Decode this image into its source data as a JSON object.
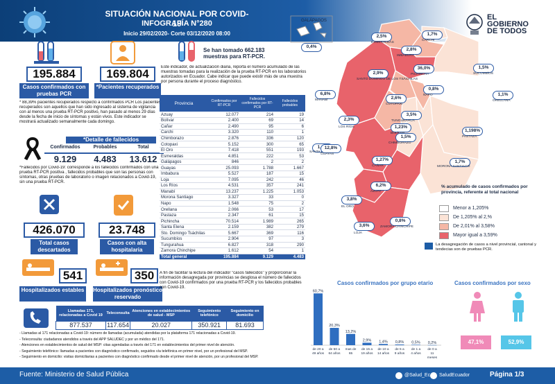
{
  "header": {
    "title": "SITUACIÓN NACIONAL POR  COVID-19",
    "subtitle": "INFOGRAFÍA N°280",
    "range": "Inicio 29/02/2020- Corte 03/12/2020 08:00",
    "logo_text": [
      "EL",
      "GOBIERNO",
      "DE TODOS"
    ]
  },
  "stats": {
    "pcr_cases": "195.884",
    "pcr_cases_label": "Casos confirmados con pruebas PCR",
    "recovered": "169.804",
    "recovered_label": "*Pacientes recuperados",
    "recovered_note": "* 88,39% pacientes recuperados respecto a confirmados PCR Los pacientes recuperados son aquellos que han sido ingresado al sistema de vigilancia con al menos una prueba RT-PCR positivo, han pasado al menos 29 días desde la fecha de inicio de síntomas y están vivos. Este indicador se mostrará actualizado semanalmente cada domingo.",
    "deaths_title": "*Detalle de fallecidos",
    "deaths_headers": [
      "Confirmados",
      "Probables",
      "Total"
    ],
    "deaths_values": [
      "9.129",
      "4.483",
      "13.612"
    ],
    "deaths_note": "*Fallecidos por Covid-19: corresponde a los fallecidos confirmados con una prueba RT-PCR positiva , fallecidos probables que son las personas con síntomas, otras pruebas de laboratorio o imagen relacionados a Covid-19, sin una prueba RT-PCR.",
    "discarded": "426.070",
    "discarded_label": "Total casos descartados",
    "high_discharge": "23.748",
    "high_discharge_label": "Casos con alta hospitalaria",
    "hospital_stable": "541",
    "hospital_stable_label": "Hospitalizados estables",
    "hospital_reserved": "350",
    "hospital_reserved_label": "Hospitalizados pronóstico reservado"
  },
  "tests": {
    "headline": "Se han tomado 662.183 muestras  para RT-PCR.",
    "description": "Este indicador, de actualización diaria, reporta el número acumulado de las muestras tomadas para la realización de la prueba RT-PCR en los laboratorios autorizados en Ecuador. Cabe indicar que puede existir más de una muestra por persona durante el proceso diagnóstico."
  },
  "province_table": {
    "headers": [
      "Provincia",
      "Confirmados por RT-PCR",
      "Fallecidos confirmados por RT-PCR",
      "Fallecidos probables"
    ],
    "rows": [
      [
        "Azuay",
        "12.077",
        "214",
        "19"
      ],
      [
        "Bolívar",
        "2.400",
        "69",
        "14"
      ],
      [
        "Cañar",
        "2.490",
        "95",
        "6"
      ],
      [
        "Carchi",
        "3.320",
        "110",
        "1"
      ],
      [
        "Chimborazo",
        "2.876",
        "336",
        "120"
      ],
      [
        "Cotopaxi",
        "5.152",
        "300",
        "65"
      ],
      [
        "El Oro",
        "7.418",
        "551",
        "193"
      ],
      [
        "Esmeraldas",
        "4.851",
        "222",
        "53"
      ],
      [
        "Galápagos",
        "846",
        "2",
        "2"
      ],
      [
        "Guayas",
        "25.093",
        "1.788",
        "1.667"
      ],
      [
        "Imbabura",
        "5.527",
        "187",
        "15"
      ],
      [
        "Loja",
        "7.095",
        "242",
        "46"
      ],
      [
        "Los Ríos",
        "4.531",
        "357",
        "241"
      ],
      [
        "Manabí",
        "13.237",
        "1.225",
        "1.053"
      ],
      [
        "Morona Santiago",
        "3.327",
        "33",
        "0"
      ],
      [
        "Napo",
        "1.548",
        "75",
        "2"
      ],
      [
        "Orellana",
        "2.066",
        "53",
        "17"
      ],
      [
        "Pastaza",
        "2.347",
        "61",
        "15"
      ],
      [
        "Pichincha",
        "70.514",
        "1.989",
        "265"
      ],
      [
        "Santa Elena",
        "2.159",
        "382",
        "279"
      ],
      [
        "Sto. Domingo Tsáchilas",
        "5.667",
        "369",
        "116"
      ],
      [
        "Sucumbíos",
        "2.904",
        "97",
        "3"
      ],
      [
        "Tungurahua",
        "6.827",
        "318",
        "290"
      ],
      [
        "Zamora Chinchipe",
        "1.612",
        "54",
        "1"
      ]
    ],
    "total": [
      "Total general",
      "195.884",
      "9.129",
      "4.483"
    ]
  },
  "deaths_disaggregation_note": "A fin de facilitar la lectura del indicador \"casos fallecidos\" y proporcionar la información desagregada por provincias se desglosa el número de fallecidos con Covid-19 confirmados por una prueba RT-PCR y los fallecidos probables con Covid-19.",
  "calls": {
    "headers": [
      "Llamadas 171, relacionadas a Covid 19",
      "Teleconsulta",
      "Atenciones en establecimientos de salud - MSP",
      "Seguimiento telefónico",
      "Seguimiento en domicilio"
    ],
    "values": [
      "877.537",
      "117.654",
      "20.027",
      "350.921",
      "81.693"
    ],
    "notes": [
      "- Llamadas al 171 relacionadas a Covid-19: número de llamadas (acumulada) atendidas por la plataforma 171 relacionadas a Covid-19.",
      "- Teleconsulta: ciudadanos atendidos a través del APP SALUDEC y por un médico del 171.",
      "- Atenciones en establecimientos de salud del MSP:  citas agendadas a través del 171 en establecimientos del primer nivel de atención.",
      "- Seguimiento telefónico: llamadas a pacientes con diagnóstico confirmado, seguidos vía telefónica en primer nivel, por un profesional del MSP.",
      "- Seguimiento en domicilio: visitas domiciliarias a pacientes con diagnóstico confirmado desde el primer nivel de atención, por un profesional del MSP."
    ]
  },
  "map": {
    "galapagos_label": "GALÁPAGOS",
    "regions": [
      {
        "name": "ESMERALDAS",
        "pct": "2,5%"
      },
      {
        "name": "CARCHI",
        "pct": "1,7%"
      },
      {
        "name": "IMBABURA",
        "pct": "2,8%"
      },
      {
        "name": "PICHINCHA",
        "pct": "36,0%"
      },
      {
        "name": "SANTO DOMINGO DE LOS TSÁCHILAS",
        "pct": "2,9%"
      },
      {
        "name": "SUCUMBÍOS",
        "pct": "1,5%"
      },
      {
        "name": "NAPO",
        "pct": "0,8%"
      },
      {
        "name": "ORELLANA",
        "pct": "1,1%"
      },
      {
        "name": "MANABÍ",
        "pct": "6,8%"
      },
      {
        "name": "COTOPAXI",
        "pct": "2,6%"
      },
      {
        "name": "TUNGURAHUA",
        "pct": "3,5%"
      },
      {
        "name": "LOS RÍOS",
        "pct": "2,3%"
      },
      {
        "name": "BOLÍVAR",
        "pct": "1,23%"
      },
      {
        "name": "CHIMBORAZO",
        "pct": "1,5%"
      },
      {
        "name": "PASTAZA",
        "pct": "1,198%"
      },
      {
        "name": "SANTA ELENA",
        "pct": "1,1%"
      },
      {
        "name": "GUAYAS",
        "pct": "12,8%"
      },
      {
        "name": "CAÑAR",
        "pct": "1,27%"
      },
      {
        "name": "MORONA SANTIAGO",
        "pct": "1,7%"
      },
      {
        "name": "AZUAY",
        "pct": "6,2%"
      },
      {
        "name": "EL ORO",
        "pct": "3,8%"
      },
      {
        "name": "LOJA",
        "pct": "3,6%"
      },
      {
        "name": "ZAMORA CHINCHIPE",
        "pct": "0,8%"
      }
    ],
    "galapagos_pct": "0,4%",
    "legend_title": "% acumulado de casos confirmados por provincia, referente al total nacional",
    "legend": [
      {
        "label": "Menor a 1,205%",
        "color": "#ffffff"
      },
      {
        "label": "De 1,205% al 2,%",
        "color": "#fbe3d6"
      },
      {
        "label": "De 2,01% al 3,58%",
        "color": "#f5b7a5"
      },
      {
        "label": "Mayor igual a 3,59%",
        "color": "#e8636b"
      }
    ],
    "note": "La desagregación de casos a nivel provincial, cantonal y tendecias son  de pruebas PCR."
  },
  "chart_data": [
    {
      "type": "bar",
      "title": "Casos confirmados por grupo etario",
      "categories": [
        "de 20 a 49 años",
        "de 50 a 64 años",
        "mas de 65",
        "de 15 a 19 años",
        "de 10 a 14 años",
        "de 5 a 9 años",
        "de 1 a 4 años",
        "de 0 a 11 meses"
      ],
      "values": [
        60.7,
        20.3,
        13.2,
        2.9,
        1.4,
        0.8,
        0.5,
        0.2
      ],
      "labels": [
        "60,7%",
        "20,3%",
        "13,2%",
        "2,9%",
        "1,4%",
        "0,8%",
        "0,5%",
        "0,2%"
      ],
      "ylim": [
        0,
        65
      ]
    },
    {
      "type": "bar",
      "title": "Casos confirmados por sexo",
      "categories": [
        "Mujeres",
        "Hombres"
      ],
      "values": [
        47.1,
        52.9
      ],
      "labels": [
        "47,1%",
        "52,9%"
      ],
      "colors": [
        "#f08ab8",
        "#56c6e8"
      ]
    }
  ],
  "footer": {
    "source": "Fuente: Ministerio de Salud Pública",
    "social1": "@Salud_Ec",
    "social2": "SaludEcuador",
    "page": "Página 1/3"
  }
}
